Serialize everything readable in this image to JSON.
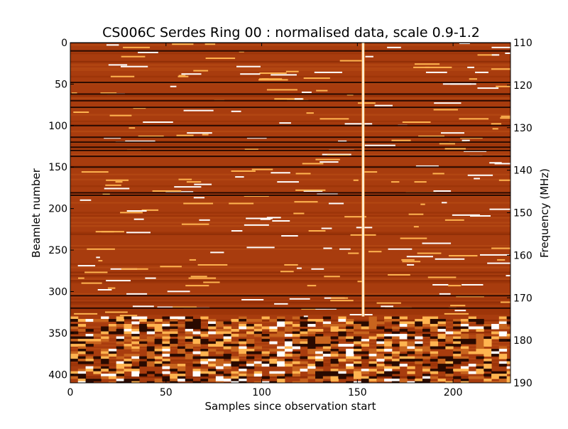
{
  "chart_data": {
    "type": "heatmap",
    "title": "CS006C Serdes Ring 00 : normalised data, scale 0.9-1.2",
    "xlabel": "Samples since observation start",
    "ylabel": "Beamlet number",
    "y2label": "Frequency (MHz)",
    "xlim": [
      0,
      230
    ],
    "ylim": [
      0,
      410
    ],
    "y2lim": [
      110,
      190
    ],
    "x_ticks": [
      0,
      50,
      100,
      150,
      200
    ],
    "y_ticks": [
      0,
      50,
      100,
      150,
      200,
      250,
      300,
      350,
      400
    ],
    "y2_ticks": [
      110,
      120,
      130,
      140,
      150,
      160,
      170,
      180,
      190
    ],
    "colormap": "afmhot",
    "color_scale": [
      0.9,
      1.2
    ],
    "colors": {
      "base": "#a83c0e",
      "dark": "#2a0a00",
      "bright": "#ffffff",
      "mid": "#c8641e",
      "warm": "#ffb450"
    },
    "features": {
      "bright_vertical_sample": 153,
      "bright_vertical_end_beamlet": 330,
      "dark_horizontal_beamlets": [
        0,
        10,
        48,
        62,
        70,
        78,
        100,
        114,
        120,
        126,
        130,
        137,
        150,
        181,
        184,
        305,
        320
      ],
      "high_variance_band": [
        330,
        410
      ]
    }
  }
}
